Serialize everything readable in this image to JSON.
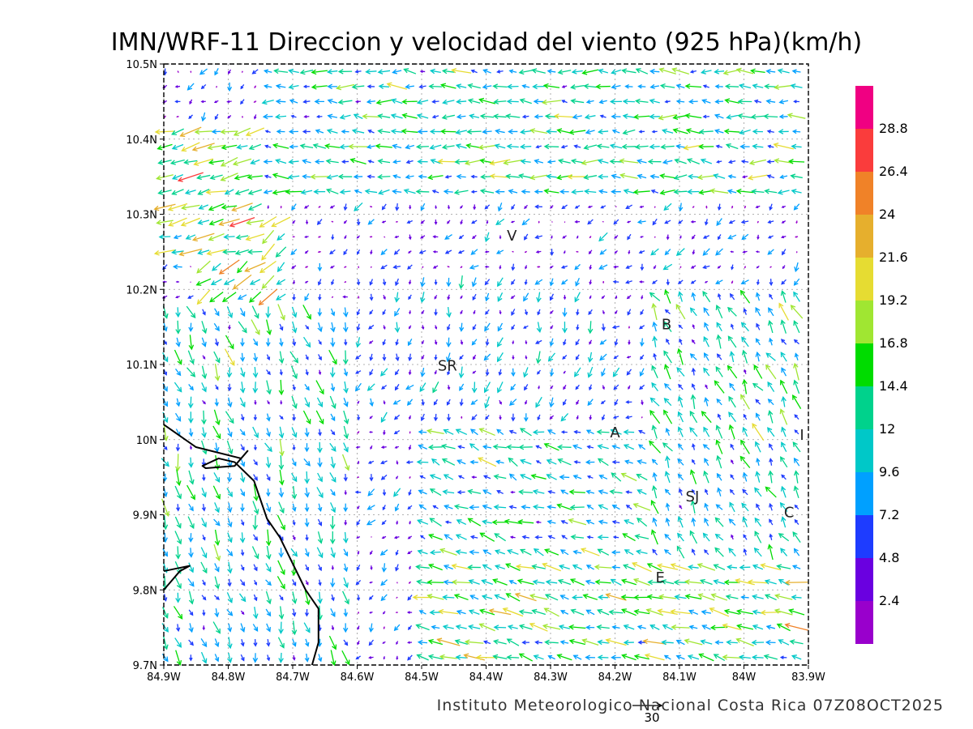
{
  "title": "IMN/WRF-11 Direccion y velocidad del viento (925 hPa)(km/h)",
  "credit": "Instituto Meteorologico Nacional Costa Rica 07Z08OCT2025",
  "reference_vector": {
    "label": "30",
    "speed": 30
  },
  "map": {
    "lon_range": [
      -84.9,
      -83.9
    ],
    "lat_range": [
      9.7,
      10.5
    ],
    "gridlines": "dotted"
  },
  "x_ticks": [
    {
      "lon": -84.9,
      "label": "84.9W"
    },
    {
      "lon": -84.8,
      "label": "84.8W"
    },
    {
      "lon": -84.7,
      "label": "84.7W"
    },
    {
      "lon": -84.6,
      "label": "84.6W"
    },
    {
      "lon": -84.5,
      "label": "84.5W"
    },
    {
      "lon": -84.4,
      "label": "84.4W"
    },
    {
      "lon": -84.3,
      "label": "84.3W"
    },
    {
      "lon": -84.2,
      "label": "84.2W"
    },
    {
      "lon": -84.1,
      "label": "84.1W"
    },
    {
      "lon": -84.0,
      "label": "84W"
    },
    {
      "lon": -83.9,
      "label": "83.9W"
    }
  ],
  "y_ticks": [
    {
      "lat": 10.5,
      "label": "10.5N"
    },
    {
      "lat": 10.4,
      "label": "10.4N"
    },
    {
      "lat": 10.3,
      "label": "10.3N"
    },
    {
      "lat": 10.2,
      "label": "10.2N"
    },
    {
      "lat": 10.1,
      "label": "10.1N"
    },
    {
      "lat": 10.0,
      "label": "10N"
    },
    {
      "lat": 9.9,
      "label": "9.9N"
    },
    {
      "lat": 9.8,
      "label": "9.8N"
    },
    {
      "lat": 9.7,
      "label": "9.7N"
    }
  ],
  "colorbar": {
    "colors": [
      "#9900cc",
      "#6a00e0",
      "#1e3cff",
      "#00a0ff",
      "#00c8c8",
      "#00d28c",
      "#00dc00",
      "#a0e632",
      "#e6dc32",
      "#e6af2d",
      "#f08228",
      "#fa3c3c",
      "#f00082"
    ],
    "labels": [
      "2.4",
      "4.8",
      "7.2",
      "9.6",
      "12",
      "14.4",
      "16.8",
      "19.2",
      "21.6",
      "24",
      "26.4",
      "28.8"
    ]
  },
  "cities": [
    {
      "label": "V",
      "lon": -84.36,
      "lat": 10.265
    },
    {
      "label": "SR",
      "lon": -84.46,
      "lat": 10.092
    },
    {
      "label": "B",
      "lon": -84.12,
      "lat": 10.147
    },
    {
      "label": "A",
      "lon": -84.2,
      "lat": 10.003
    },
    {
      "label": "SJ",
      "lon": -84.08,
      "lat": 9.918
    },
    {
      "label": "C",
      "lon": -83.93,
      "lat": 9.897
    },
    {
      "label": "I",
      "lon": -83.91,
      "lat": 10.0
    },
    {
      "label": "E",
      "lon": -84.13,
      "lat": 9.81
    }
  ],
  "coastline": [
    [
      -84.9,
      10.02
    ],
    [
      -84.85,
      9.99
    ],
    [
      -84.78,
      9.975
    ],
    [
      -84.77,
      9.985
    ],
    [
      -84.79,
      9.965
    ],
    [
      -84.835,
      9.962
    ],
    [
      -84.84,
      9.965
    ],
    [
      -84.815,
      9.975
    ],
    [
      -84.79,
      9.97
    ],
    [
      -84.76,
      9.945
    ],
    [
      -84.74,
      9.895
    ],
    [
      -84.72,
      9.87
    ],
    [
      -84.7,
      9.835
    ],
    [
      -84.68,
      9.8
    ],
    [
      -84.66,
      9.775
    ],
    [
      -84.66,
      9.73
    ],
    [
      -84.67,
      9.7
    ]
  ],
  "coastline_gulf": [
    [
      -84.9,
      9.8
    ],
    [
      -84.89,
      9.81
    ],
    [
      -84.875,
      9.825
    ],
    [
      -84.86,
      9.832
    ],
    [
      -84.9,
      9.825
    ]
  ],
  "wind_field": {
    "lon_step": 0.02,
    "lat_step": 0.02,
    "regions": [
      {
        "name": "north-easterly band",
        "lat_min": 10.32,
        "lat_max": 10.5,
        "lon_min": -84.75,
        "lon_max": -83.9,
        "u": -11,
        "v": 0.5
      },
      {
        "name": "northwest coast strong",
        "lat_min": 10.25,
        "lat_max": 10.42,
        "lon_min": -84.9,
        "lon_max": -84.75,
        "u": -16,
        "v": -4
      },
      {
        "name": "northwest jet",
        "lat_min": 10.18,
        "lat_max": 10.3,
        "lon_min": -84.85,
        "lon_max": -84.7,
        "u": -12,
        "v": -9
      },
      {
        "name": "western slope",
        "lat_min": 9.7,
        "lat_max": 10.18,
        "lon_min": -84.9,
        "lon_max": -84.6,
        "u": 3,
        "v": -9
      },
      {
        "name": "central plains",
        "lat_min": 10.02,
        "lat_max": 10.22,
        "lon_min": -84.6,
        "lon_max": -84.2,
        "u": -2,
        "v": -6
      },
      {
        "name": "central valley convergence",
        "lat_min": 9.85,
        "lat_max": 10.02,
        "lon_min": -84.5,
        "lon_max": -84.15,
        "u": -10,
        "v": 3
      },
      {
        "name": "eastern highlands",
        "lat_min": 9.85,
        "lat_max": 10.2,
        "lon_min": -84.15,
        "lon_max": -83.9,
        "u": -5,
        "v": 9
      },
      {
        "name": "southern valley",
        "lat_min": 9.7,
        "lat_max": 9.85,
        "lon_min": -84.5,
        "lon_max": -83.9,
        "u": -13,
        "v": 3
      }
    ]
  }
}
